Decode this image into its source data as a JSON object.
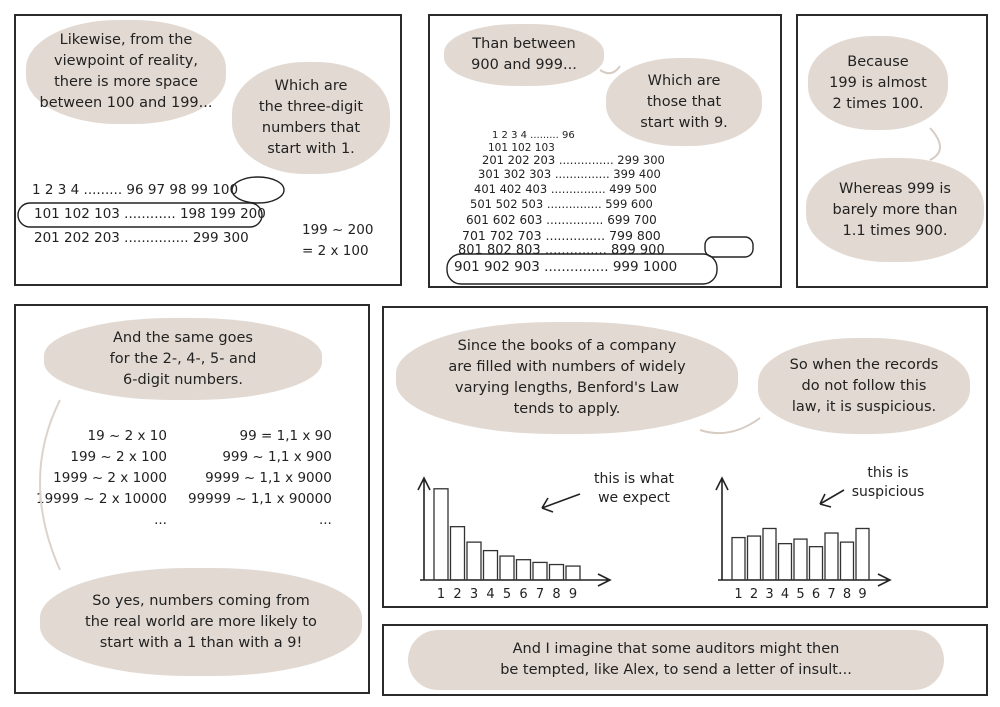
{
  "panel1": {
    "bubble_a": "Likewise, from the\nviewpoint of reality,\nthere is more space\nbetween 100 and 199...",
    "bubble_b": "Which are\nthe three-digit\nnumbers that\nstart with 1.",
    "rows": [
      "1 2 3 4 ......... 96 97 98 99 100",
      "101 102 103 ............ 198 199 200",
      "201 202 203 ............... 299 300"
    ],
    "formula": "199 ~ 200\n= 2 x 100"
  },
  "panel2": {
    "bubble_a": "Than between\n900 and 999...",
    "bubble_b": "Which are\nthose that\nstart with 9.",
    "rows": [
      "1 2 3 4 ......... 96",
      "101 102 103",
      "201 202 203 ............... 299 300",
      "301 302 303 ............... 399 400",
      "401 402 403 ............... 499 500",
      "501 502 503 ............... 599 600",
      "601 602 603 ............... 699 700",
      "701 702 703 ............... 799 800",
      "801 802 803 ............... 899 900",
      "901 902 903 ............... 999 1000"
    ]
  },
  "panel3": {
    "bubble_a": "Because\n199 is almost\n2 times 100.",
    "bubble_b": "Whereas 999 is\nbarely more than\n1.1 times 900."
  },
  "panel4": {
    "bubble_a": "And the same goes\nfor the 2-, 4-, 5- and\n6-digit numbers.",
    "left_col": "19 ~ 2 x 10\n199 ~ 2 x 100\n1999 ~ 2 x 1000\n19999 ~ 2 x 10000\n...",
    "right_col": "99 = 1,1 x 90\n999 ~ 1,1 x 900\n9999 ~ 1,1 x 9000\n99999 ~ 1,1 x 90000\n...",
    "bubble_b": "So yes, numbers coming from\nthe real world are more likely to\nstart with a 1 than with a 9!"
  },
  "panel5": {
    "bubble_a": "Since the books of a company\nare filled with numbers of widely\nvarying lengths, Benford's Law\ntends to apply.",
    "bubble_b": "So when the records\ndo not follow this\nlaw, it is suspicious.",
    "caption_expected": "this is what\nwe expect",
    "caption_suspicious": "this is\nsuspicious"
  },
  "panel6": {
    "bubble": "And I imagine that some auditors might then\nbe tempted, like Alex, to send a letter of insult..."
  },
  "chart_data": [
    {
      "type": "bar",
      "categories": [
        "1",
        "2",
        "3",
        "4",
        "5",
        "6",
        "7",
        "8",
        "9"
      ],
      "values": [
        30.1,
        17.6,
        12.5,
        9.7,
        7.9,
        6.7,
        5.8,
        5.1,
        4.6
      ],
      "ylim": [
        0,
        33
      ]
    },
    {
      "type": "bar",
      "categories": [
        "1",
        "2",
        "3",
        "4",
        "5",
        "6",
        "7",
        "8",
        "9"
      ],
      "values": [
        14.0,
        14.5,
        17.0,
        12.0,
        13.5,
        11.0,
        15.5,
        12.5,
        17.0
      ],
      "ylim": [
        0,
        33
      ]
    }
  ],
  "colors": {
    "bubble": "#e2d9d2",
    "ink": "#222222"
  }
}
